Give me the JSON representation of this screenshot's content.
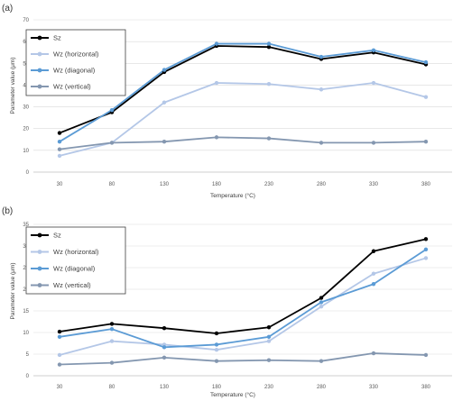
{
  "chart_data": [
    {
      "panel_label": "(a)",
      "type": "line",
      "xlabel": "Temperature (°C)",
      "ylabel": "Parameter value (μm)",
      "categories": [
        "30",
        "80",
        "130",
        "180",
        "230",
        "280",
        "330",
        "380"
      ],
      "ylim": [
        0,
        70
      ],
      "yticks": [
        0,
        10,
        20,
        30,
        40,
        50,
        60,
        70
      ],
      "grid": "horizontal",
      "legend_position": "top-left",
      "series": [
        {
          "name": "Sz",
          "color": "#000000",
          "values": [
            18,
            27.5,
            46,
            58,
            57.5,
            52,
            55,
            49.5
          ]
        },
        {
          "name": "Wz (horizontal)",
          "color": "#b4c7e7",
          "values": [
            7.5,
            13.5,
            32,
            41,
            40.5,
            38,
            41,
            34.5
          ]
        },
        {
          "name": "Wz (diagonal)",
          "color": "#5b9bd5",
          "values": [
            14,
            28.5,
            47,
            59,
            59,
            53,
            56,
            50.5
          ]
        },
        {
          "name": "Wz (vertical)",
          "color": "#8497b0",
          "values": [
            10.5,
            13.5,
            14,
            16,
            15.5,
            13.5,
            13.5,
            14
          ]
        }
      ]
    },
    {
      "panel_label": "(b)",
      "type": "line",
      "xlabel": "Temperature (°C)",
      "ylabel": "Parameter value (μm)",
      "categories": [
        "30",
        "80",
        "130",
        "180",
        "230",
        "280",
        "330",
        "380"
      ],
      "ylim": [
        0,
        35
      ],
      "yticks": [
        0,
        5,
        10,
        15,
        20,
        25,
        30,
        35
      ],
      "grid": "horizontal",
      "legend_position": "top-left",
      "series": [
        {
          "name": "Sz",
          "color": "#000000",
          "values": [
            10.2,
            12,
            11,
            9.8,
            11.2,
            18,
            28.8,
            31.6
          ]
        },
        {
          "name": "Wz (horizontal)",
          "color": "#b4c7e7",
          "values": [
            4.8,
            8,
            7.2,
            6,
            8,
            16,
            23.6,
            27.2
          ]
        },
        {
          "name": "Wz (diagonal)",
          "color": "#5b9bd5",
          "values": [
            9,
            10.8,
            6.6,
            7.2,
            9,
            17,
            21.2,
            29.2
          ]
        },
        {
          "name": "Wz (vertical)",
          "color": "#8497b0",
          "values": [
            2.6,
            3,
            4.2,
            3.4,
            3.6,
            3.4,
            5.2,
            4.8
          ]
        }
      ]
    }
  ]
}
